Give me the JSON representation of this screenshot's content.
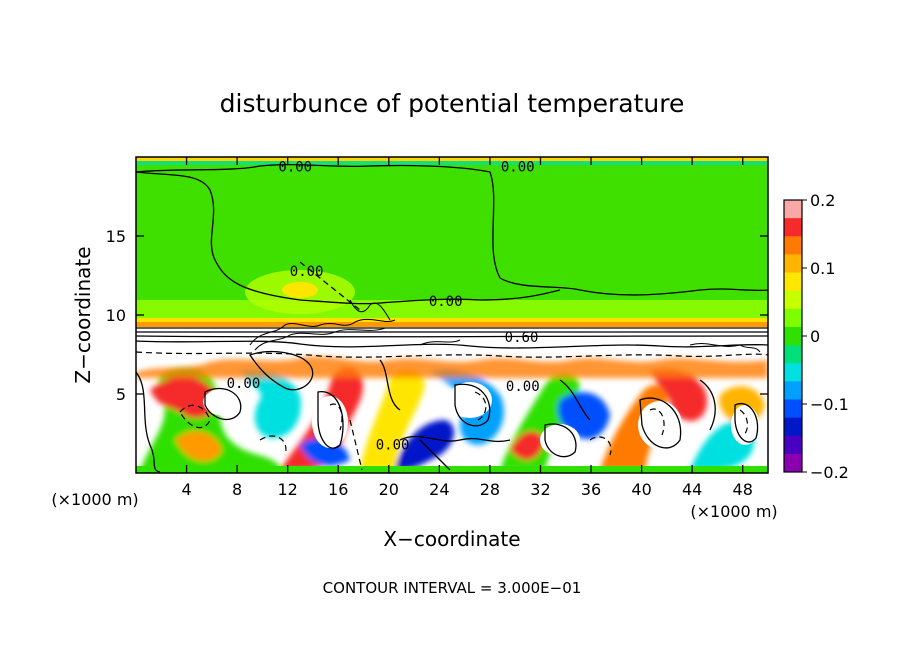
{
  "chart_data": {
    "type": "heatmap",
    "title": "disturbunce of potential temperature",
    "xlabel": "X−coordinate",
    "ylabel": "Z−coordinate",
    "x_unit": "(×1000 m)",
    "y_unit": "(×1000 m)",
    "xlim": [
      0,
      50
    ],
    "ylim": [
      0,
      20
    ],
    "x_ticks": [
      "4",
      "8",
      "12",
      "16",
      "20",
      "24",
      "28",
      "32",
      "36",
      "40",
      "44",
      "48"
    ],
    "y_ticks": [
      "5",
      "10",
      "15"
    ],
    "colorbar": {
      "range": [
        -0.2,
        0.2
      ],
      "tick_labels": [
        "0.2",
        "0.1",
        "0",
        "−0.1",
        "−0.2"
      ],
      "colors": [
        "#f9a7a7",
        "#f52a2a",
        "#ff7a00",
        "#ffb400",
        "#ffe600",
        "#c8ff00",
        "#7dff00",
        "#2fe000",
        "#00e07a",
        "#00e0e0",
        "#00a0ff",
        "#0050ff",
        "#0018c8",
        "#4a00c0",
        "#8a00b0"
      ]
    },
    "contour_labels": [
      {
        "text": "0.00",
        "x": 12.6,
        "z": 19.4
      },
      {
        "text": "0.00",
        "x": 30.2,
        "z": 19.4
      },
      {
        "text": "0.00",
        "x": 13.5,
        "z": 12.8
      },
      {
        "text": "0.00",
        "x": 24.5,
        "z": 10.9
      },
      {
        "text": "0.60",
        "x": 30.5,
        "z": 8.6
      },
      {
        "text": "0.00",
        "x": 8.5,
        "z": 5.7
      },
      {
        "text": "0.00",
        "x": 20.3,
        "z": 1.8
      },
      {
        "text": "0.00",
        "x": 30.6,
        "z": 5.5
      }
    ],
    "annotation": "CONTOUR INTERVAL = 3.000E−01"
  }
}
